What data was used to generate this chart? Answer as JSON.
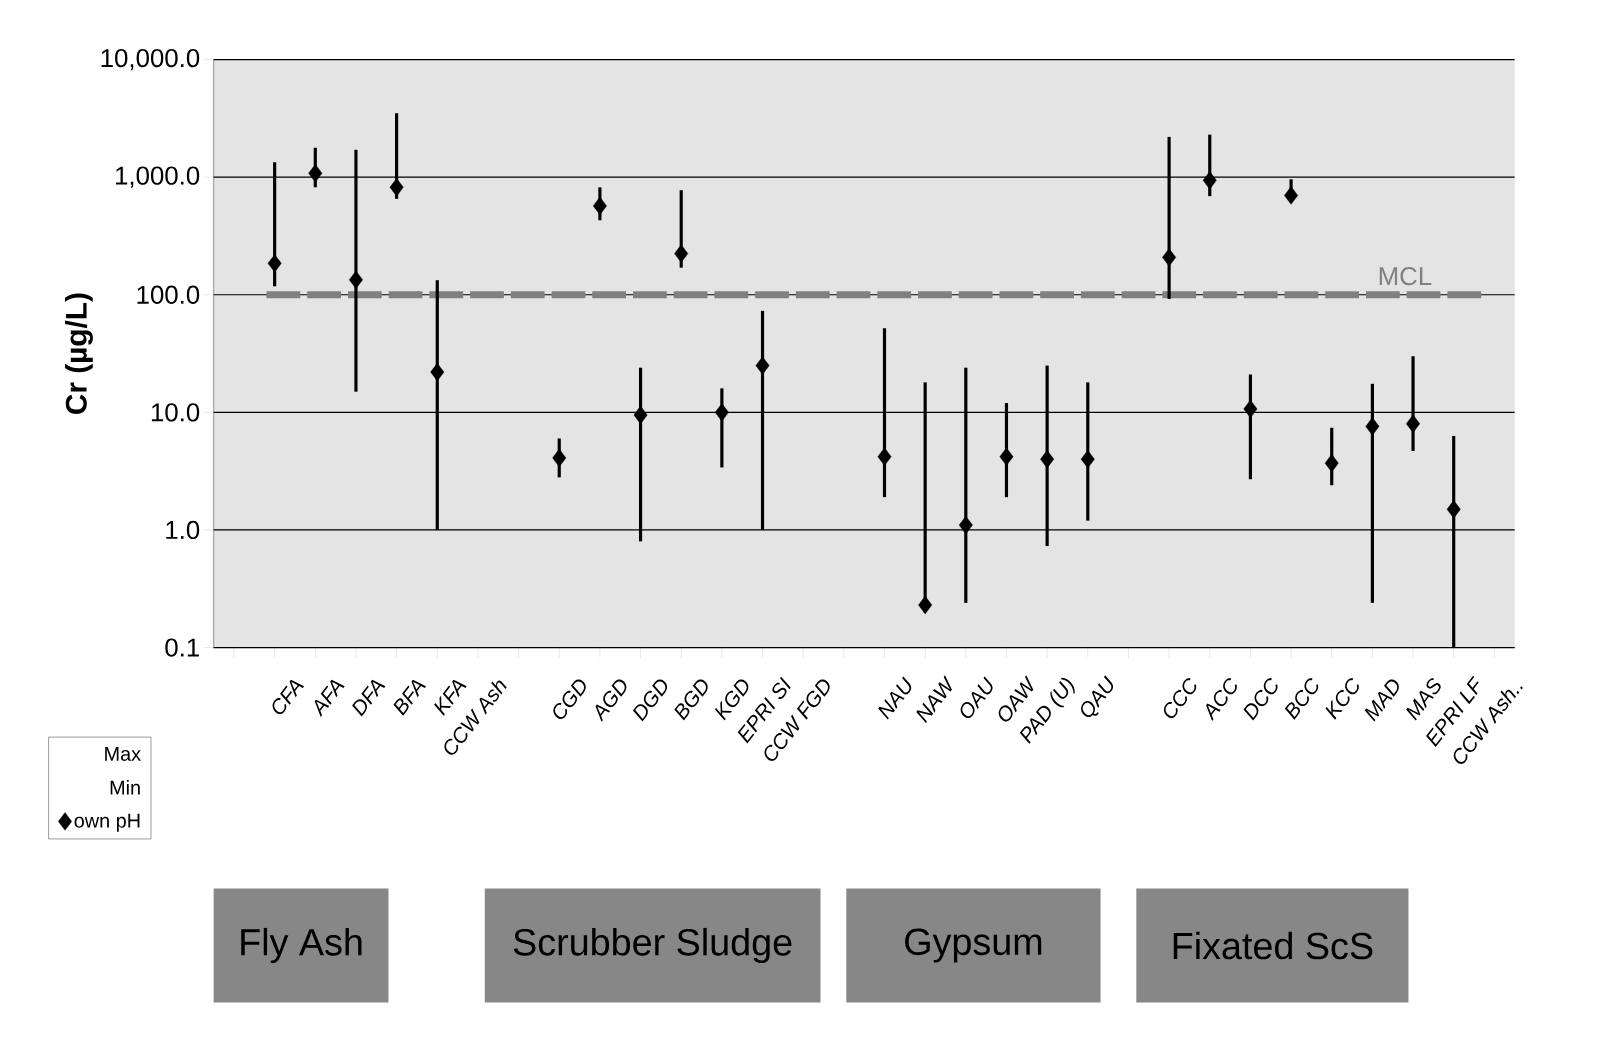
{
  "chart_data": {
    "type": "scatter",
    "ylabel": "Cr (µg/L)",
    "categories": [
      null,
      "CFA",
      "AFA",
      "DFA",
      "BFA",
      "KFA",
      "CCW Ash",
      null,
      "CGD",
      "AGD",
      "DGD",
      "BGD",
      "KGD",
      "EPRI SI",
      "CCW FGD",
      null,
      "NAU",
      "NAW",
      "OAU",
      "OAW",
      "PAD (U)",
      "QAU",
      null,
      "CCC",
      "ACC",
      "DCC",
      "BCC",
      "KCC",
      "MAD",
      "MAS",
      "EPRI LF",
      "CCW Ash.."
    ],
    "series": [
      {
        "name": "own pH",
        "color": "#000000",
        "marker": "diamond",
        "values": [
          null,
          185,
          1080,
          134,
          820,
          22,
          null,
          null,
          4.1,
          570,
          9.5,
          224,
          10,
          25,
          null,
          null,
          4.2,
          0.23,
          1.1,
          4.2,
          4,
          4,
          null,
          208,
          940,
          10.7,
          700,
          3.7,
          7.6,
          8,
          1.5,
          null
        ],
        "errors": [
          null,
          [
            118,
            1340
          ],
          [
            820,
            1780
          ],
          [
            15,
            1710
          ],
          [
            655,
            3500
          ],
          [
            1,
            133
          ],
          null,
          null,
          [
            2.8,
            6
          ],
          [
            430,
            820
          ],
          [
            0.8,
            24
          ],
          [
            170,
            775
          ],
          [
            3.4,
            16
          ],
          [
            1,
            73
          ],
          null,
          null,
          [
            1.9,
            52
          ],
          [
            0.2,
            18
          ],
          [
            0.24,
            24
          ],
          [
            1.9,
            12
          ],
          [
            0.73,
            25
          ],
          [
            1.2,
            18
          ],
          null,
          [
            92,
            2200
          ],
          [
            690,
            2300
          ],
          [
            2.7,
            21
          ],
          [
            660,
            960
          ],
          [
            2.4,
            7.4
          ],
          [
            0.24,
            17.5
          ],
          [
            4.7,
            30
          ],
          [
            0.1,
            6.3
          ],
          null
        ]
      }
    ],
    "log": true,
    "ylim": [
      0.1,
      10000
    ],
    "yticks": [
      {
        "value": 0.1,
        "label": "0.1"
      },
      {
        "value": 1,
        "label": "1.0"
      },
      {
        "value": 10,
        "label": "10.0"
      },
      {
        "value": 100,
        "label": "100.0"
      },
      {
        "value": 1000,
        "label": "1,000.0"
      },
      {
        "value": 10000,
        "label": "10,000.0"
      }
    ],
    "grid": "y",
    "legend": "bottom left",
    "ref_lines": [
      {
        "axis": "y",
        "value": 100,
        "label": "MCL",
        "color": "#808080",
        "line_style": "dashed"
      }
    ],
    "annotations": [
      "Fly Ash",
      "Scrubber Sludge",
      "Gypsum",
      "Fixated ScS",
      "Max",
      "Min"
    ]
  }
}
